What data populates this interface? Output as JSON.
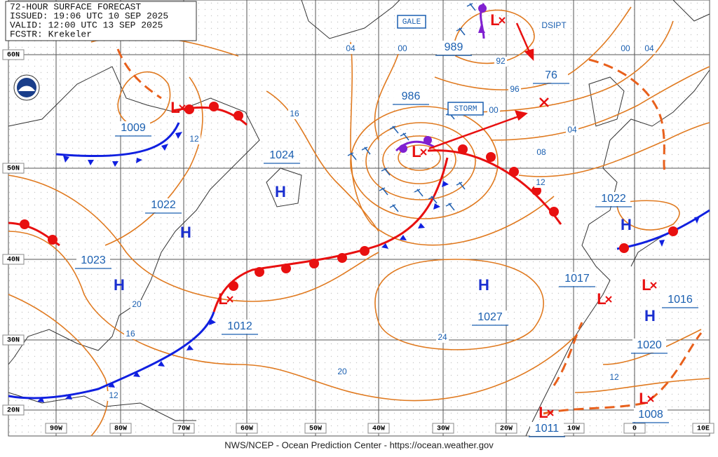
{
  "header": {
    "lines": [
      "72-HOUR SURFACE FORECAST",
      "ISSUED: 19:06 UTC 10 SEP 2025",
      "VALID: 12:00 UTC 13 SEP 2025",
      "FCSTR: Krekeler"
    ]
  },
  "footer": "NWS/NCEP - Ocean Prediction Center - https://ocean.weather.gov",
  "lat_labels": [
    "60N",
    "50N",
    "40N",
    "30N",
    "20N"
  ],
  "lon_labels": [
    "90W",
    "80W",
    "70W",
    "60W",
    "50W",
    "40W",
    "30W",
    "20W",
    "10W",
    "0",
    "10E"
  ],
  "boxed_labels": [
    "GALE",
    "STORM"
  ],
  "plain_labels": [
    "DSIPT"
  ],
  "pressure_labels": [
    "1009",
    "1024",
    "1022",
    "1023",
    "1012",
    "986",
    "989",
    "76",
    "1027",
    "1017",
    "1016",
    "1022",
    "1020",
    "1008",
    "1011"
  ],
  "isobar_labels": [
    "04",
    "00",
    "92",
    "96",
    "00",
    "00",
    "04",
    "16",
    "12",
    "08",
    "04",
    "12",
    "20",
    "16",
    "12",
    "24",
    "20",
    "12"
  ],
  "highs": [
    "H",
    "H",
    "H",
    "H",
    "H",
    "H"
  ],
  "lows": [
    "L",
    "L",
    "L",
    "L",
    "L",
    "L",
    "L",
    "L"
  ]
}
